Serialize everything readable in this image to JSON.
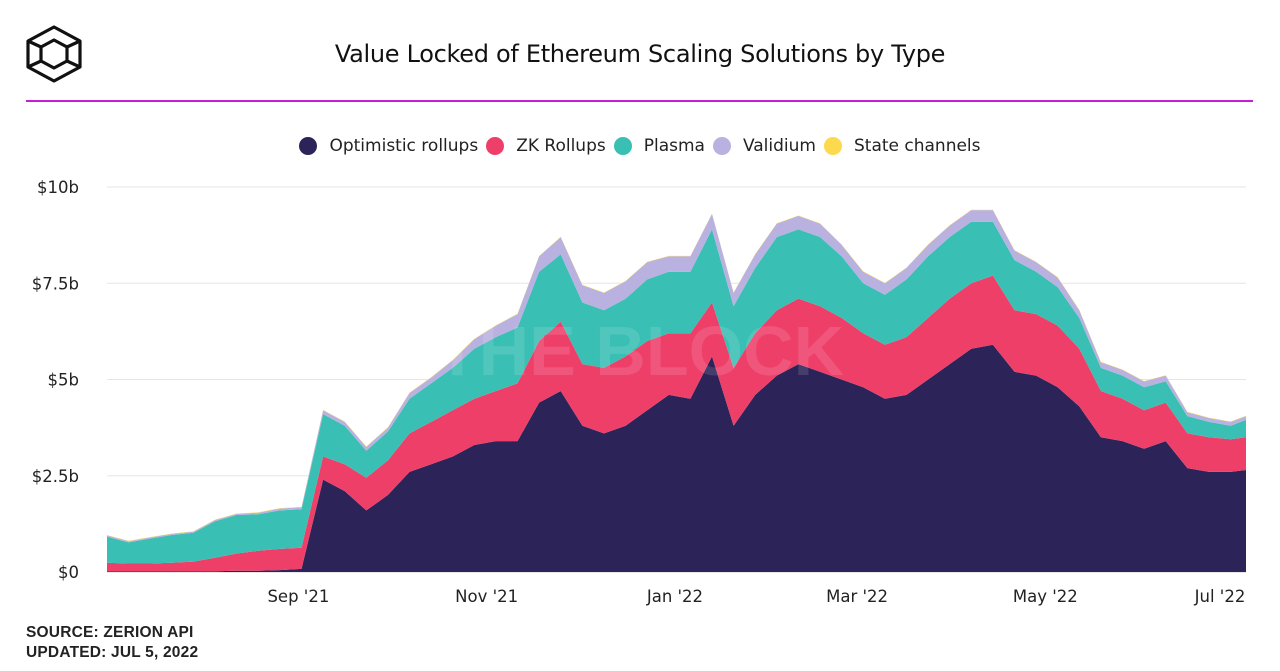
{
  "title": "Value Locked of Ethereum Scaling Solutions by Type",
  "watermark": "THE BLOCK",
  "footer": {
    "source": "SOURCE: ZERION API",
    "updated": "UPDATED: JUL 5, 2022"
  },
  "colors": {
    "accent_line": "#c21fd6",
    "optimistic": "#2c2459",
    "zk": "#ee3f69",
    "plasma": "#39bfb4",
    "validium": "#b9b1e0",
    "state": "#fcd94d"
  },
  "chart_data": {
    "type": "area",
    "stacked": true,
    "title": "Value Locked of Ethereum Scaling Solutions by Type",
    "legend_position": "top",
    "grid": true,
    "ylim": [
      0,
      10
    ],
    "y_ticks": [
      "$0",
      "$2.5b",
      "$5b",
      "$7.5b",
      "$10b"
    ],
    "y_tick_values": [
      0,
      2.5,
      5,
      7.5,
      10
    ],
    "x_ticks": [
      {
        "label": "Sep '21",
        "date": "2021-09-01"
      },
      {
        "label": "Nov '21",
        "date": "2021-11-01"
      },
      {
        "label": "Jan '22",
        "date": "2022-01-01"
      },
      {
        "label": "Mar '22",
        "date": "2022-03-01"
      },
      {
        "label": "May '22",
        "date": "2022-05-01"
      },
      {
        "label": "Jul '22",
        "date": "2022-07-01"
      }
    ],
    "x": [
      "2021-07-01",
      "2021-07-08",
      "2021-07-15",
      "2021-07-22",
      "2021-07-29",
      "2021-08-05",
      "2021-08-12",
      "2021-08-19",
      "2021-08-26",
      "2021-09-02",
      "2021-09-09",
      "2021-09-16",
      "2021-09-23",
      "2021-09-30",
      "2021-10-07",
      "2021-10-14",
      "2021-10-21",
      "2021-10-28",
      "2021-11-04",
      "2021-11-11",
      "2021-11-18",
      "2021-11-25",
      "2021-12-02",
      "2021-12-09",
      "2021-12-16",
      "2021-12-23",
      "2021-12-30",
      "2022-01-06",
      "2022-01-13",
      "2022-01-20",
      "2022-01-27",
      "2022-02-03",
      "2022-02-10",
      "2022-02-17",
      "2022-02-24",
      "2022-03-03",
      "2022-03-10",
      "2022-03-17",
      "2022-03-24",
      "2022-03-31",
      "2022-04-07",
      "2022-04-14",
      "2022-04-21",
      "2022-04-28",
      "2022-05-05",
      "2022-05-12",
      "2022-05-19",
      "2022-05-26",
      "2022-06-02",
      "2022-06-09",
      "2022-06-16",
      "2022-06-23",
      "2022-06-30",
      "2022-07-05"
    ],
    "series": [
      {
        "name": "Optimistic rollups",
        "color": "#2c2459",
        "values": [
          0.02,
          0.02,
          0.02,
          0.02,
          0.02,
          0.02,
          0.03,
          0.03,
          0.05,
          0.08,
          2.4,
          2.1,
          1.6,
          2.0,
          2.6,
          2.8,
          3.0,
          3.3,
          3.4,
          3.4,
          4.4,
          4.7,
          3.8,
          3.6,
          3.8,
          4.2,
          4.6,
          4.5,
          5.6,
          3.8,
          4.6,
          5.1,
          5.4,
          5.2,
          5.0,
          4.8,
          4.5,
          4.6,
          5.0,
          5.4,
          5.8,
          5.9,
          5.2,
          5.1,
          4.8,
          4.3,
          3.5,
          3.4,
          3.2,
          3.4,
          2.7,
          2.6,
          2.6,
          2.65
        ]
      },
      {
        "name": "ZK Rollups",
        "color": "#ee3f69",
        "values": [
          0.22,
          0.2,
          0.2,
          0.22,
          0.25,
          0.35,
          0.45,
          0.52,
          0.55,
          0.55,
          0.6,
          0.7,
          0.85,
          0.9,
          1.0,
          1.1,
          1.2,
          1.2,
          1.3,
          1.5,
          1.6,
          1.8,
          1.6,
          1.7,
          1.8,
          1.8,
          1.6,
          1.7,
          1.4,
          1.5,
          1.6,
          1.7,
          1.7,
          1.7,
          1.6,
          1.4,
          1.4,
          1.5,
          1.6,
          1.7,
          1.7,
          1.8,
          1.6,
          1.6,
          1.6,
          1.5,
          1.2,
          1.1,
          1.0,
          1.0,
          0.9,
          0.9,
          0.85,
          0.85
        ]
      },
      {
        "name": "Plasma",
        "color": "#39bfb4",
        "values": [
          0.68,
          0.55,
          0.65,
          0.72,
          0.75,
          0.95,
          1.0,
          0.95,
          1.0,
          1.0,
          1.1,
          1.0,
          0.7,
          0.75,
          0.9,
          1.0,
          1.1,
          1.3,
          1.4,
          1.45,
          1.8,
          1.75,
          1.6,
          1.5,
          1.5,
          1.6,
          1.6,
          1.6,
          1.9,
          1.6,
          1.7,
          1.9,
          1.8,
          1.8,
          1.6,
          1.3,
          1.3,
          1.5,
          1.6,
          1.6,
          1.6,
          1.4,
          1.3,
          1.1,
          1.0,
          0.8,
          0.6,
          0.6,
          0.6,
          0.55,
          0.45,
          0.4,
          0.35,
          0.45
        ]
      },
      {
        "name": "Validium",
        "color": "#b9b1e0",
        "values": [
          0.03,
          0.03,
          0.03,
          0.03,
          0.03,
          0.03,
          0.03,
          0.04,
          0.05,
          0.05,
          0.1,
          0.1,
          0.1,
          0.1,
          0.15,
          0.15,
          0.2,
          0.25,
          0.3,
          0.35,
          0.4,
          0.45,
          0.45,
          0.45,
          0.45,
          0.45,
          0.4,
          0.4,
          0.4,
          0.35,
          0.35,
          0.35,
          0.35,
          0.35,
          0.3,
          0.3,
          0.3,
          0.3,
          0.3,
          0.3,
          0.3,
          0.3,
          0.25,
          0.25,
          0.25,
          0.2,
          0.15,
          0.15,
          0.15,
          0.15,
          0.1,
          0.1,
          0.1,
          0.1
        ]
      },
      {
        "name": "State channels",
        "color": "#fcd94d",
        "values": [
          0.01,
          0.01,
          0.01,
          0.01,
          0.01,
          0.01,
          0.01,
          0.01,
          0.01,
          0.01,
          0.01,
          0.01,
          0.01,
          0.01,
          0.01,
          0.01,
          0.01,
          0.01,
          0.01,
          0.01,
          0.01,
          0.01,
          0.01,
          0.01,
          0.01,
          0.01,
          0.01,
          0.01,
          0.01,
          0.01,
          0.01,
          0.01,
          0.01,
          0.01,
          0.01,
          0.01,
          0.01,
          0.01,
          0.01,
          0.01,
          0.01,
          0.01,
          0.01,
          0.01,
          0.01,
          0.01,
          0.01,
          0.01,
          0.01,
          0.01,
          0.01,
          0.01,
          0.01,
          0.01
        ]
      }
    ]
  }
}
